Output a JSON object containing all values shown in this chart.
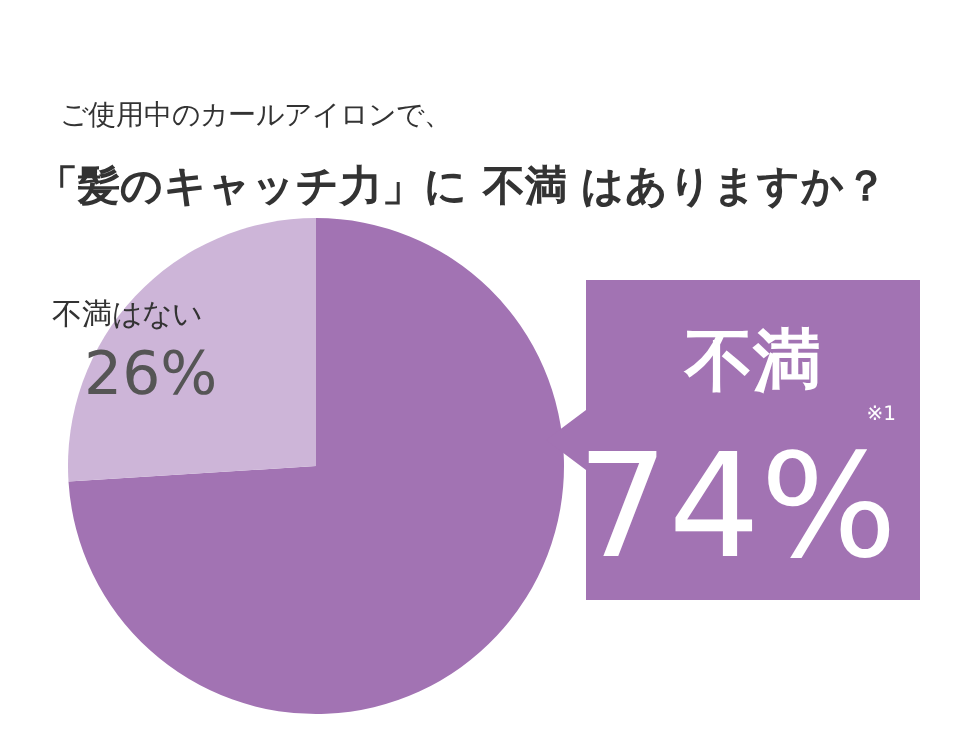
{
  "chart_data": {
    "type": "pie",
    "subtitle": "ご使用中のカールアイロンで、",
    "title": "「髪のキャッチ力」に 不満 はありますか？",
    "categories": [
      "不満",
      "不満はない"
    ],
    "values": [
      74,
      26
    ],
    "colors": [
      "#a273b3",
      "#cdb5d8"
    ],
    "value_labels": [
      "74%",
      "26%"
    ],
    "annotations": [
      "※1"
    ]
  }
}
